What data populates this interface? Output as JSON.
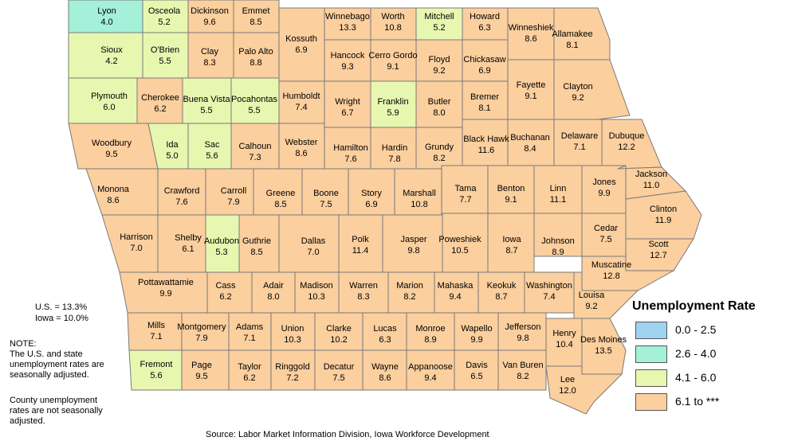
{
  "title": "Unemployment Rate",
  "colors": {
    "band_0": "#9fd2f0",
    "band_1": "#a4f0d8",
    "band_2": "#e8f7b0",
    "band_3": "#fbcf9e",
    "border": "#7a7a7a"
  },
  "legend": [
    {
      "label": "0.0 - 2.5",
      "color_key": "band_0"
    },
    {
      "label": "2.6 - 4.0",
      "color_key": "band_1"
    },
    {
      "label": "4.1 - 6.0",
      "color_key": "band_2"
    },
    {
      "label": "6.1 to ***",
      "color_key": "band_3"
    }
  ],
  "summary": {
    "us": "U.S. = 13.3%",
    "iowa": "Iowa = 10.0%"
  },
  "note": {
    "heading": "NOTE:",
    "line1": "The U.S. and state",
    "line2": "unemployment rates are",
    "line3": "seasonally adjusted.",
    "line4": "County unemployment",
    "line5": "rates are not seasonally",
    "line6": "adjusted."
  },
  "source": "Source: Labor Market Information Division, Iowa Workforce Development",
  "counties": [
    {
      "name": "Lyon",
      "rate": "4.0"
    },
    {
      "name": "Osceola",
      "rate": "5.2"
    },
    {
      "name": "Dickinson",
      "rate": "9.6"
    },
    {
      "name": "Emmet",
      "rate": "8.5"
    },
    {
      "name": "Kossuth",
      "rate": "6.9"
    },
    {
      "name": "Winnebago",
      "rate": "13.3"
    },
    {
      "name": "Worth",
      "rate": "10.8"
    },
    {
      "name": "Mitchell",
      "rate": "5.2"
    },
    {
      "name": "Howard",
      "rate": "6.3"
    },
    {
      "name": "Winneshiek",
      "rate": "8.6"
    },
    {
      "name": "Allamakee",
      "rate": "8.1"
    },
    {
      "name": "Sioux",
      "rate": "4.2"
    },
    {
      "name": "O'Brien",
      "rate": "5.5"
    },
    {
      "name": "Clay",
      "rate": "8.3"
    },
    {
      "name": "Palo Alto",
      "rate": "8.8"
    },
    {
      "name": "Hancock",
      "rate": "9.3"
    },
    {
      "name": "Cerro Gordo",
      "rate": "9.1"
    },
    {
      "name": "Floyd",
      "rate": "9.2"
    },
    {
      "name": "Chickasaw",
      "rate": "6.9"
    },
    {
      "name": "Fayette",
      "rate": "9.1"
    },
    {
      "name": "Clayton",
      "rate": "9.2"
    },
    {
      "name": "Plymouth",
      "rate": "6.0"
    },
    {
      "name": "Cherokee",
      "rate": "6.2"
    },
    {
      "name": "Buena Vista",
      "rate": "5.5"
    },
    {
      "name": "Pocahontas",
      "rate": "5.5"
    },
    {
      "name": "Humboldt",
      "rate": "7.4"
    },
    {
      "name": "Wright",
      "rate": "6.7"
    },
    {
      "name": "Franklin",
      "rate": "5.9"
    },
    {
      "name": "Butler",
      "rate": "8.0"
    },
    {
      "name": "Bremer",
      "rate": "8.1"
    },
    {
      "name": "Woodbury",
      "rate": "9.5"
    },
    {
      "name": "Ida",
      "rate": "5.0"
    },
    {
      "name": "Sac",
      "rate": "5.6"
    },
    {
      "name": "Calhoun",
      "rate": "7.3"
    },
    {
      "name": "Webster",
      "rate": "8.6"
    },
    {
      "name": "Hamilton",
      "rate": "7.6"
    },
    {
      "name": "Hardin",
      "rate": "7.8"
    },
    {
      "name": "Grundy",
      "rate": "8.2"
    },
    {
      "name": "Black Hawk",
      "rate": "11.6"
    },
    {
      "name": "Buchanan",
      "rate": "8.4"
    },
    {
      "name": "Delaware",
      "rate": "7.1"
    },
    {
      "name": "Dubuque",
      "rate": "12.2"
    },
    {
      "name": "Monona",
      "rate": "8.6"
    },
    {
      "name": "Crawford",
      "rate": "7.6"
    },
    {
      "name": "Carroll",
      "rate": "7.9"
    },
    {
      "name": "Greene",
      "rate": "8.5"
    },
    {
      "name": "Boone",
      "rate": "7.5"
    },
    {
      "name": "Story",
      "rate": "6.9"
    },
    {
      "name": "Marshall",
      "rate": "10.8"
    },
    {
      "name": "Tama",
      "rate": "7.7"
    },
    {
      "name": "Benton",
      "rate": "9.1"
    },
    {
      "name": "Linn",
      "rate": "11.1"
    },
    {
      "name": "Jones",
      "rate": "9.9"
    },
    {
      "name": "Jackson",
      "rate": "11.0"
    },
    {
      "name": "Clinton",
      "rate": "11.9"
    },
    {
      "name": "Harrison",
      "rate": "7.0"
    },
    {
      "name": "Shelby",
      "rate": "6.1"
    },
    {
      "name": "Audubon",
      "rate": "5.3"
    },
    {
      "name": "Guthrie",
      "rate": "8.5"
    },
    {
      "name": "Dallas",
      "rate": "7.0"
    },
    {
      "name": "Polk",
      "rate": "11.4"
    },
    {
      "name": "Jasper",
      "rate": "9.8"
    },
    {
      "name": "Poweshiek",
      "rate": "10.5"
    },
    {
      "name": "Iowa",
      "rate": "8.7"
    },
    {
      "name": "Johnson",
      "rate": "8.9"
    },
    {
      "name": "Cedar",
      "rate": "7.5"
    },
    {
      "name": "Scott",
      "rate": "12.7"
    },
    {
      "name": "Muscatine",
      "rate": "12.8"
    },
    {
      "name": "Pottawattamie",
      "rate": "9.9"
    },
    {
      "name": "Cass",
      "rate": "6.2"
    },
    {
      "name": "Adair",
      "rate": "8.0"
    },
    {
      "name": "Madison",
      "rate": "10.3"
    },
    {
      "name": "Warren",
      "rate": "8.3"
    },
    {
      "name": "Marion",
      "rate": "8.2"
    },
    {
      "name": "Mahaska",
      "rate": "9.4"
    },
    {
      "name": "Keokuk",
      "rate": "8.7"
    },
    {
      "name": "Washington",
      "rate": "7.4"
    },
    {
      "name": "Louisa",
      "rate": "9.2"
    },
    {
      "name": "Mills",
      "rate": "7.1"
    },
    {
      "name": "Montgomery",
      "rate": "7.9"
    },
    {
      "name": "Adams",
      "rate": "7.1"
    },
    {
      "name": "Union",
      "rate": "10.3"
    },
    {
      "name": "Clarke",
      "rate": "10.2"
    },
    {
      "name": "Lucas",
      "rate": "6.3"
    },
    {
      "name": "Monroe",
      "rate": "8.9"
    },
    {
      "name": "Wapello",
      "rate": "9.9"
    },
    {
      "name": "Jefferson",
      "rate": "9.8"
    },
    {
      "name": "Henry",
      "rate": "10.4"
    },
    {
      "name": "Des Moines",
      "rate": "13.5"
    },
    {
      "name": "Fremont",
      "rate": "5.6"
    },
    {
      "name": "Page",
      "rate": "9.5"
    },
    {
      "name": "Taylor",
      "rate": "6.2"
    },
    {
      "name": "Ringgold",
      "rate": "7.2"
    },
    {
      "name": "Decatur",
      "rate": "7.5"
    },
    {
      "name": "Wayne",
      "rate": "8.6"
    },
    {
      "name": "Appanoose",
      "rate": "9.4"
    },
    {
      "name": "Davis",
      "rate": "6.5"
    },
    {
      "name": "Van Buren",
      "rate": "8.2"
    },
    {
      "name": "Lee",
      "rate": "12.0"
    }
  ]
}
